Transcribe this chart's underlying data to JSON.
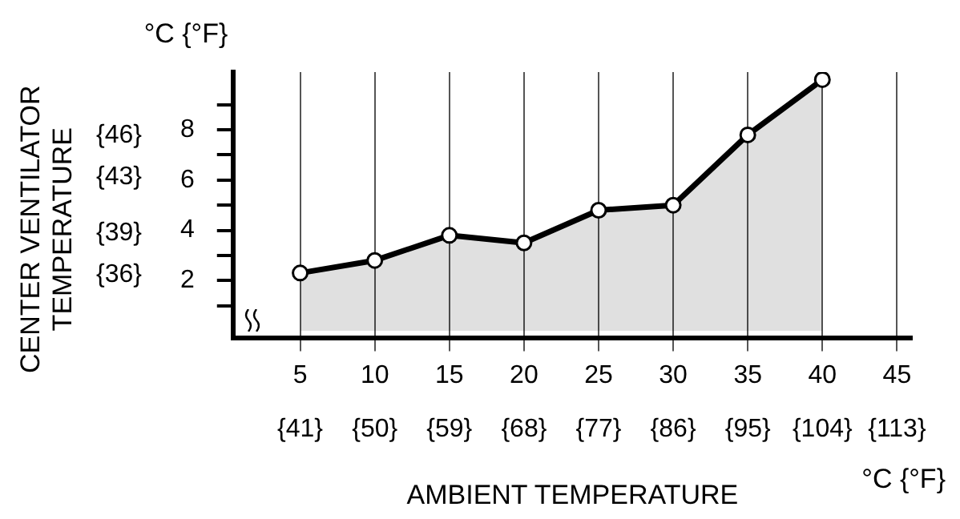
{
  "chart_data": {
    "type": "area",
    "xlabel": "AMBIENT TEMPERATURE",
    "y2label": "CENTER VENTILATOR TEMPERATURE",
    "annotations": [
      "°C {°F}",
      "°C {°F}"
    ],
    "x": [
      5,
      10,
      15,
      20,
      25,
      30,
      35,
      40
    ],
    "series": [
      {
        "color": "#000000",
        "values": [
          2.3,
          2.8,
          3.8,
          3.5,
          4.8,
          5.0,
          7.8,
          10.0
        ]
      }
    ],
    "xlim": [
      0.5,
      46
    ],
    "xticks": [
      5,
      10,
      15,
      20,
      25,
      30,
      35,
      40,
      45
    ],
    "x2lim": [
      32.9,
      114.8
    ],
    "x2ticks": [
      {
        "value": 41,
        "label": "{41}"
      },
      {
        "value": 50,
        "label": "{50}"
      },
      {
        "value": 59,
        "label": "{59}"
      },
      {
        "value": 68,
        "label": "{68}"
      },
      {
        "value": 77,
        "label": "{77}"
      },
      {
        "value": 86,
        "label": "{86}"
      },
      {
        "value": 95,
        "label": "{95}"
      },
      {
        "value": 104,
        "label": "{104}"
      },
      {
        "value": 113,
        "label": "{113}"
      }
    ],
    "ylim": [
      -0.3,
      10.3
    ],
    "yticks": [
      {
        "value": 1,
        "label": null
      },
      2,
      {
        "value": 3,
        "label": null
      },
      4,
      {
        "value": 5,
        "label": null
      },
      6,
      {
        "value": 7,
        "label": null
      },
      8,
      {
        "value": 9,
        "label": null
      }
    ],
    "y2lim": [
      31.46,
      50.54
    ],
    "y2ticks": [
      {
        "value": 36,
        "label": "{36}"
      },
      {
        "value": 39,
        "label": "{39}"
      },
      {
        "value": 43,
        "label": "{43}"
      },
      {
        "value": 46,
        "label": "{46}"
      }
    ],
    "grid": "x",
    "marker": "circle",
    "line_style": "solid",
    "legend": false
  }
}
